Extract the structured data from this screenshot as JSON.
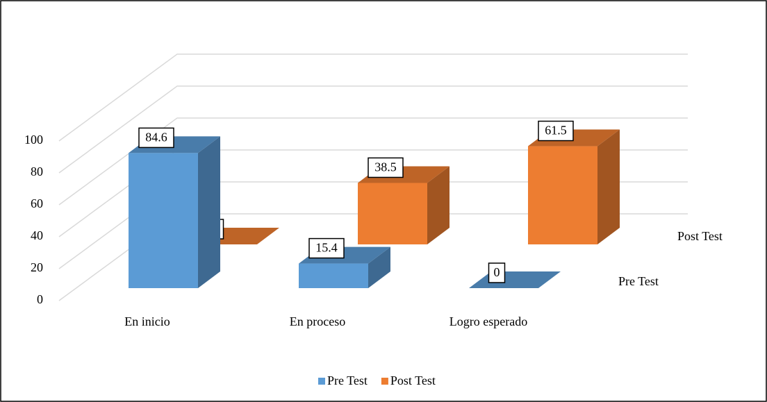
{
  "chart_data": {
    "type": "bar3d",
    "categories": [
      "En inicio",
      "En proceso",
      "Logro esperado"
    ],
    "series": [
      {
        "name": "Pre Test",
        "color": "#5b9bd5",
        "values": [
          84.6,
          15.4,
          0
        ]
      },
      {
        "name": "Post Test",
        "color": "#ed7d31",
        "values": [
          0,
          38.5,
          61.5
        ]
      }
    ],
    "ylim": [
      0,
      100
    ],
    "yticks": [
      0,
      20,
      40,
      60,
      80,
      100
    ],
    "grid": true,
    "legend": "bottom"
  }
}
